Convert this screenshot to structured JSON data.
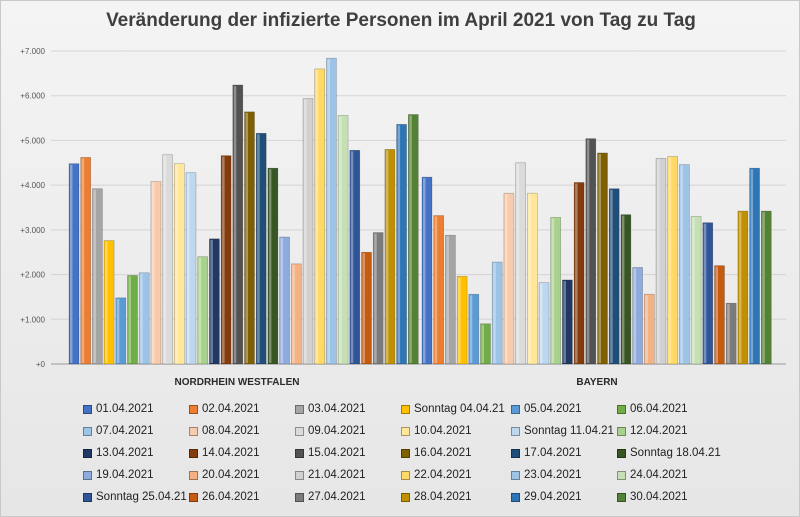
{
  "chart_data": {
    "type": "bar",
    "title": "Veränderung der infizierte Personen im April 2021 von Tag zu Tag",
    "categories": [
      "NORDRHEIN WESTFALEN",
      "BAYERN"
    ],
    "y_ticks": [
      "+0",
      "+1.000",
      "+2.000",
      "+3.000",
      "+4.000",
      "+5.000",
      "+6.000",
      "+7.000"
    ],
    "ylim": [
      0,
      7000
    ],
    "grid": true,
    "legend_position": "bottom",
    "series": [
      {
        "name": "01.04.2021",
        "color": "#4472c4",
        "values": [
          4480,
          4180
        ]
      },
      {
        "name": "02.04.2021",
        "color": "#ed7d31",
        "values": [
          4620,
          3320
        ]
      },
      {
        "name": "03.04.2021",
        "color": "#a5a5a5",
        "values": [
          3920,
          2880
        ]
      },
      {
        "name": "Sonntag 04.04.21",
        "color": "#ffc000",
        "values": [
          2760,
          1960
        ]
      },
      {
        "name": "05.04.2021",
        "color": "#5b9bd5",
        "values": [
          1480,
          1560
        ]
      },
      {
        "name": "06.04.2021",
        "color": "#70ad47",
        "values": [
          1980,
          900
        ]
      },
      {
        "name": "07.04.2021",
        "color": "#9dc3e6",
        "values": [
          2040,
          2280
        ]
      },
      {
        "name": "08.04.2021",
        "color": "#f8cbad",
        "values": [
          4080,
          3820
        ]
      },
      {
        "name": "09.04.2021",
        "color": "#dbdbdb",
        "values": [
          4680,
          4500
        ]
      },
      {
        "name": "10.04.2021",
        "color": "#ffe699",
        "values": [
          4480,
          3820
        ]
      },
      {
        "name": "Sonntag 11.04.21",
        "color": "#bdd7ee",
        "values": [
          4280,
          1820
        ]
      },
      {
        "name": "12.04.2021",
        "color": "#a9d18e",
        "values": [
          2400,
          3280
        ]
      },
      {
        "name": "13.04.2021",
        "color": "#203864",
        "values": [
          2800,
          1880
        ]
      },
      {
        "name": "14.04.2021",
        "color": "#843c0c",
        "values": [
          4660,
          4060
        ]
      },
      {
        "name": "15.04.2021",
        "color": "#525252",
        "values": [
          6240,
          5040
        ]
      },
      {
        "name": "16.04.2021",
        "color": "#7f6000",
        "values": [
          5640,
          4720
        ]
      },
      {
        "name": "17.04.2021",
        "color": "#1f4e79",
        "values": [
          5160,
          3920
        ]
      },
      {
        "name": "Sonntag 18.04.21",
        "color": "#375623",
        "values": [
          4380,
          3340
        ]
      },
      {
        "name": "19.04.2021",
        "color": "#8faadc",
        "values": [
          2840,
          2160
        ]
      },
      {
        "name": "20.04.2021",
        "color": "#f4b183",
        "values": [
          2240,
          1560
        ]
      },
      {
        "name": "21.04.2021",
        "color": "#d0d0d0",
        "values": [
          5940,
          4600
        ]
      },
      {
        "name": "22.04.2021",
        "color": "#ffd966",
        "values": [
          6600,
          4640
        ]
      },
      {
        "name": "23.04.2021",
        "color": "#9dc3e6",
        "values": [
          6840,
          4460
        ]
      },
      {
        "name": "24.04.2021",
        "color": "#c5e0b4",
        "values": [
          5560,
          3300
        ]
      },
      {
        "name": "Sonntag 25.04.21",
        "color": "#2f5597",
        "values": [
          4780,
          3160
        ]
      },
      {
        "name": "26.04.2021",
        "color": "#c55a11",
        "values": [
          2500,
          2200
        ]
      },
      {
        "name": "27.04.2021",
        "color": "#7b7b7b",
        "values": [
          2940,
          1360
        ]
      },
      {
        "name": "28.04.2021",
        "color": "#bf9000",
        "values": [
          4800,
          3420
        ]
      },
      {
        "name": "29.04.2021",
        "color": "#2e75b6",
        "values": [
          5360,
          4380
        ]
      },
      {
        "name": "30.04.2021",
        "color": "#548235",
        "values": [
          5580,
          3420
        ]
      }
    ]
  }
}
